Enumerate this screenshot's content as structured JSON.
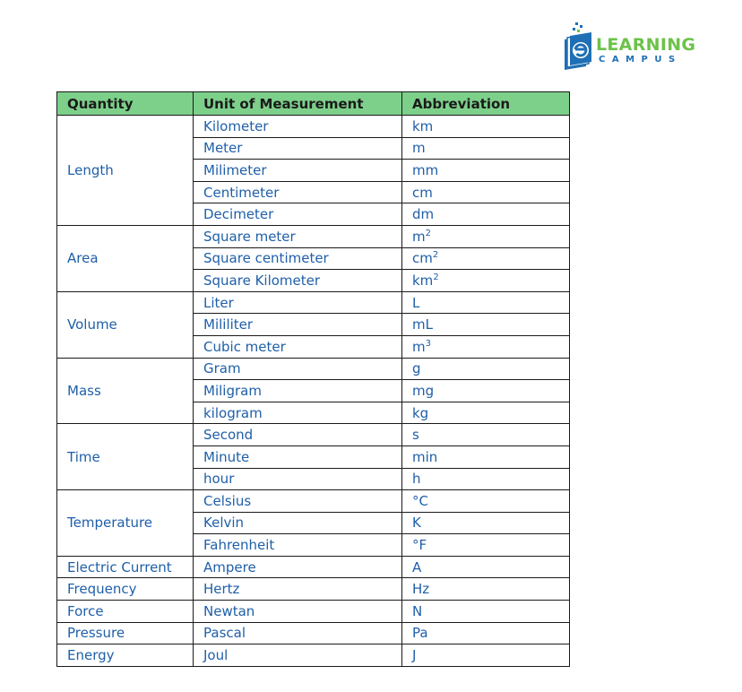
{
  "logo": {
    "word1": "LEARNING",
    "word2": "CAMPUS",
    "colors": {
      "green": "#6cc24a",
      "blue": "#1f6fb5"
    }
  },
  "colors": {
    "header_bg": "#7dd08a",
    "text": "#1f5fa8",
    "border": "#1a1a1a"
  },
  "table": {
    "headers": [
      "Quantity",
      "Unit of Measurement",
      "Abbreviation"
    ],
    "groups": [
      {
        "quantity": "Length",
        "units": [
          {
            "unit": "Kilometer",
            "abbr": "km",
            "sup": ""
          },
          {
            "unit": "Meter",
            "abbr": "m",
            "sup": ""
          },
          {
            "unit": "Milimeter",
            "abbr": "mm",
            "sup": ""
          },
          {
            "unit": "Centimeter",
            "abbr": "cm",
            "sup": ""
          },
          {
            "unit": "Decimeter",
            "abbr": "dm",
            "sup": ""
          }
        ]
      },
      {
        "quantity": "Area",
        "units": [
          {
            "unit": "Square meter",
            "abbr": "m",
            "sup": "2"
          },
          {
            "unit": "Square centimeter",
            "abbr": "cm",
            "sup": "2"
          },
          {
            "unit": "Square Kilometer",
            "abbr": "km",
            "sup": "2"
          }
        ]
      },
      {
        "quantity": "Volume",
        "units": [
          {
            "unit": "Liter",
            "abbr": "L",
            "sup": ""
          },
          {
            "unit": "Mililiter",
            "abbr": "mL",
            "sup": ""
          },
          {
            "unit": "Cubic meter",
            "abbr": "m",
            "sup": "3"
          }
        ]
      },
      {
        "quantity": "Mass",
        "units": [
          {
            "unit": "Gram",
            "abbr": "g",
            "sup": ""
          },
          {
            "unit": "Miligram",
            "abbr": "mg",
            "sup": ""
          },
          {
            "unit": "kilogram",
            "abbr": "kg",
            "sup": ""
          }
        ]
      },
      {
        "quantity": "Time",
        "units": [
          {
            "unit": "Second",
            "abbr": "s",
            "sup": ""
          },
          {
            "unit": "Minute",
            "abbr": "min",
            "sup": ""
          },
          {
            "unit": "hour",
            "abbr": "h",
            "sup": ""
          }
        ]
      },
      {
        "quantity": "Temperature",
        "units": [
          {
            "unit": "Celsius",
            "abbr": "°C",
            "sup": ""
          },
          {
            "unit": "Kelvin",
            "abbr": "K",
            "sup": ""
          },
          {
            "unit": "Fahrenheit",
            "abbr": "°F",
            "sup": ""
          }
        ]
      },
      {
        "quantity": "Electric Current",
        "units": [
          {
            "unit": "Ampere",
            "abbr": "A",
            "sup": ""
          }
        ]
      },
      {
        "quantity": "Frequency",
        "units": [
          {
            "unit": "Hertz",
            "abbr": "Hz",
            "sup": ""
          }
        ]
      },
      {
        "quantity": "Force",
        "units": [
          {
            "unit": "Newtan",
            "abbr": "N",
            "sup": ""
          }
        ]
      },
      {
        "quantity": "Pressure",
        "units": [
          {
            "unit": "Pascal",
            "abbr": "Pa",
            "sup": ""
          }
        ]
      },
      {
        "quantity": "Energy",
        "units": [
          {
            "unit": "Joul",
            "abbr": "J",
            "sup": ""
          }
        ]
      }
    ]
  }
}
